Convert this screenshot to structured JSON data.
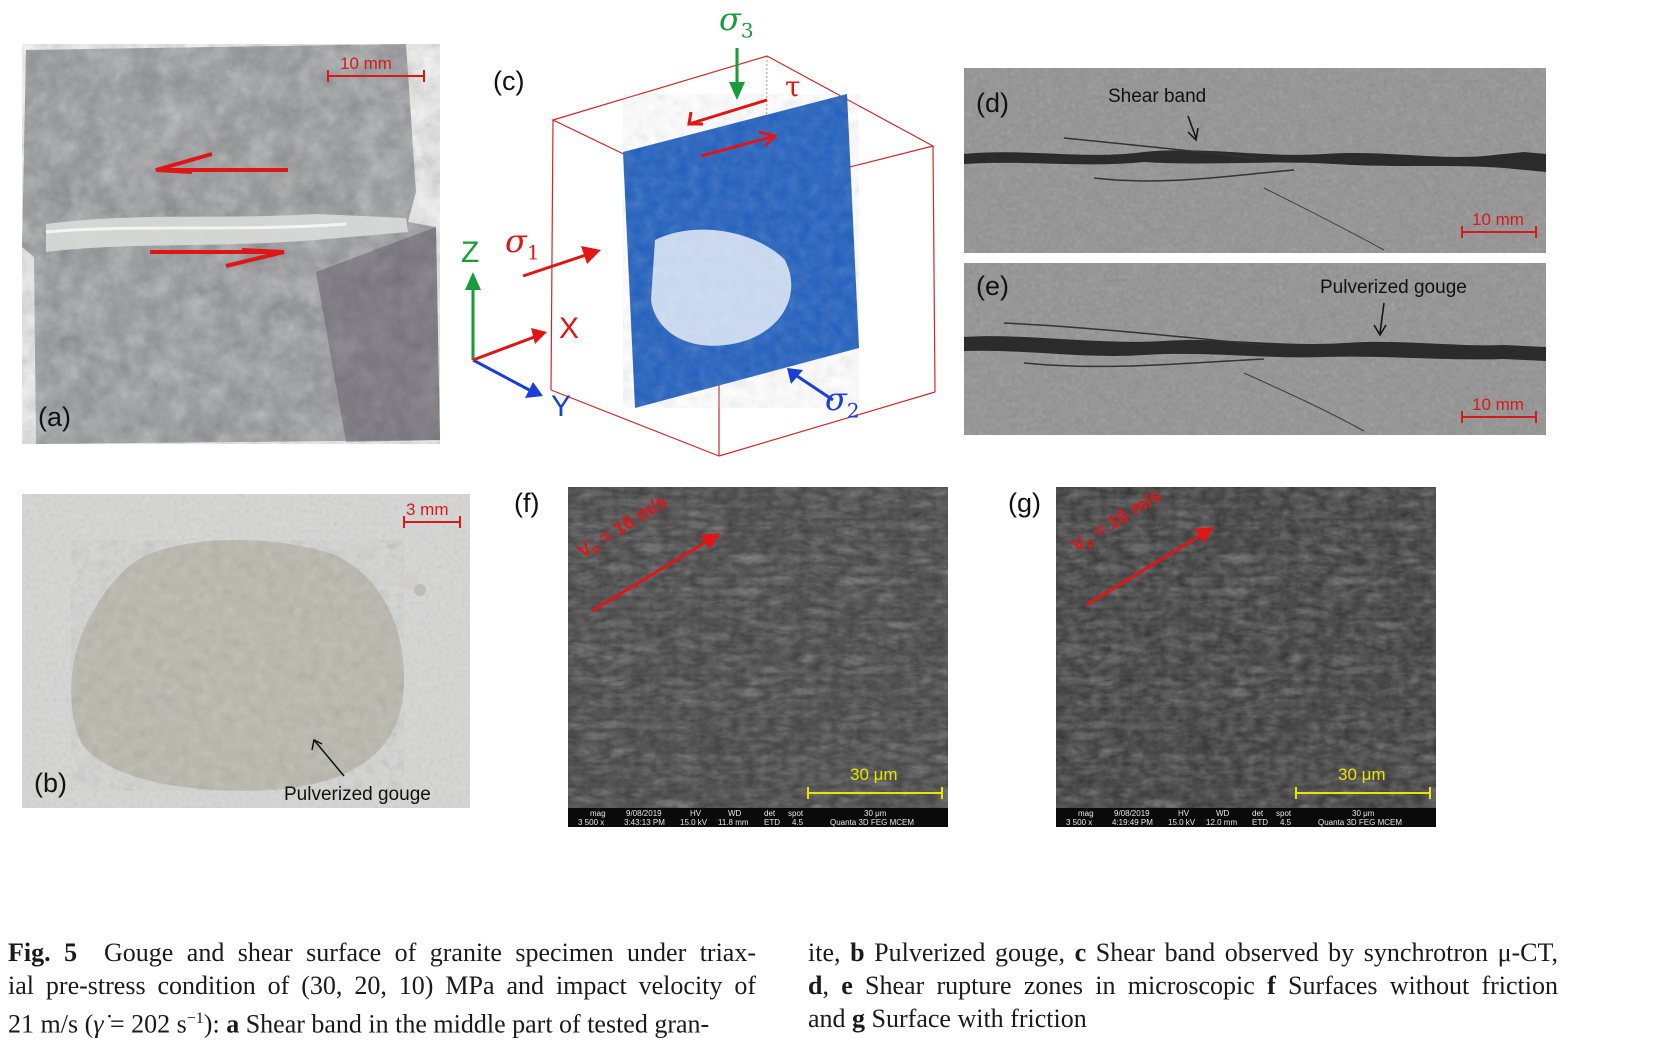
{
  "panels": {
    "a": {
      "label": "(a)",
      "scale": "10 mm"
    },
    "b": {
      "label": "(b)",
      "scale": "3 mm",
      "annotation": "Pulverized gouge"
    },
    "c": {
      "label": "(c)",
      "axis_z": "Z",
      "axis_y": "Y",
      "axis_x": "X",
      "sigma1": "σ",
      "sigma1_sub": "1",
      "sigma2": "σ",
      "sigma2_sub": "2",
      "sigma3": "σ",
      "sigma3_sub": "3",
      "tau": "τ"
    },
    "d": {
      "label": "(d)",
      "annotation": "Shear band",
      "scale": "10 mm"
    },
    "e": {
      "label": "(e)",
      "annotation": "Pulverized gouge",
      "scale": "10 mm"
    },
    "f": {
      "label": "(f)",
      "velocity": "V",
      "velocity_sub": "P",
      "velocity_value": " = 16 m/s",
      "scale": "30 μm",
      "sem": {
        "mag_h": "mag",
        "mag_v": "3 500 x",
        "date_h": "9/08/2019",
        "date_v": "3:43:13 PM",
        "hv_h": "HV",
        "hv_v": "15.0 kV",
        "wd_h": "WD",
        "wd_v": "11.8 mm",
        "det_h": "det",
        "det_v": "ETD",
        "spot_h": "spot",
        "spot_v": "4.5",
        "bar_h": "30 μm",
        "bar_v": "Quanta 3D FEG MCEM"
      }
    },
    "g": {
      "label": "(g)",
      "velocity": "V",
      "velocity_sub": "P",
      "velocity_value": " = 16 m/s",
      "scale": "30 μm",
      "sem": {
        "mag_h": "mag",
        "mag_v": "3 500 x",
        "date_h": "9/08/2019",
        "date_v": "4:19:49 PM",
        "hv_h": "HV",
        "hv_v": "15.0 kV",
        "wd_h": "WD",
        "wd_v": "12.0 mm",
        "det_h": "det",
        "det_v": "ETD",
        "spot_h": "spot",
        "spot_v": "4.5",
        "bar_h": "30 μm",
        "bar_v": "Quanta 3D FEG MCEM"
      }
    }
  },
  "caption": {
    "fig": "Fig. 5",
    "left_l1": "Gouge and shear surface of granite specimen under triax-",
    "left_l2": "ial pre-stress condition of (30, 20, 10) MPa and impact velocity of",
    "left_l3a": "21 m/s (",
    "left_l3_gamma": "γ̇",
    "left_l3b": " = 202 s",
    "left_l3_exp": "−1",
    "left_l3c": "): ",
    "left_l3_a": "a",
    "left_l3d": " Shear band in the middle part of tested gran-",
    "right_l1a": "ite, ",
    "right_b": "b",
    "right_l1b": " Pulverized gouge, ",
    "right_c": "c",
    "right_l1c": " Shear band observed by synchrotron μ-CT,",
    "right_d": "d",
    "right_l2a": ", ",
    "right_e": "e",
    "right_l2b": " Shear rupture zones in microscopic ",
    "right_f": "f",
    "right_l2c": " Surfaces without friction",
    "right_l3a": "and ",
    "right_g": "g",
    "right_l3b": " Surface with friction"
  },
  "colors": {
    "arrow_red": "#e01515",
    "cube_red": "#cc2a2a",
    "blue_volume": "#1f5fc0",
    "axis_green": "#1a9a3a",
    "axis_blue": "#1a3fd6",
    "scale_yellow": "#e6e600"
  }
}
